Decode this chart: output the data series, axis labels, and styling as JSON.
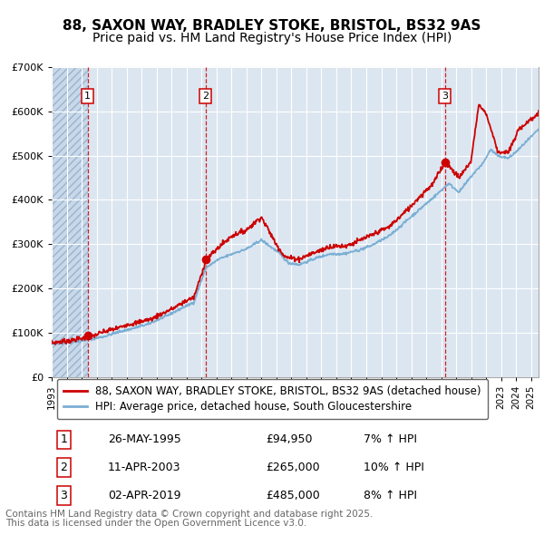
{
  "title_line1": "88, SAXON WAY, BRADLEY STOKE, BRISTOL, BS32 9AS",
  "title_line2": "Price paid vs. HM Land Registry's House Price Index (HPI)",
  "legend_label_red": "88, SAXON WAY, BRADLEY STOKE, BRISTOL, BS32 9AS (detached house)",
  "legend_label_blue": "HPI: Average price, detached house, South Gloucestershire",
  "transactions": [
    {
      "num": 1,
      "date": "26-MAY-1995",
      "price": 94950,
      "pct": "7%",
      "dir": "↑"
    },
    {
      "num": 2,
      "date": "11-APR-2003",
      "price": 265000,
      "pct": "10%",
      "dir": "↑"
    },
    {
      "num": 3,
      "date": "02-APR-2019",
      "price": 485000,
      "pct": "8%",
      "dir": "↑"
    }
  ],
  "transaction_dates_decimal": [
    1995.396,
    2003.274,
    2019.249
  ],
  "transaction_prices": [
    94950,
    265000,
    485000
  ],
  "footnote_line1": "Contains HM Land Registry data © Crown copyright and database right 2025.",
  "footnote_line2": "This data is licensed under the Open Government Licence v3.0.",
  "ylim": [
    0,
    700000
  ],
  "yticks": [
    0,
    100000,
    200000,
    300000,
    400000,
    500000,
    600000,
    700000
  ],
  "ytick_labels": [
    "£0",
    "£100K",
    "£200K",
    "£300K",
    "£400K",
    "£500K",
    "£600K",
    "£700K"
  ],
  "xmin": 1993.0,
  "xmax": 2025.5,
  "plot_bg_color": "#dce6f1",
  "hatch_facecolor": "#c8d8ea",
  "red_color": "#cc0000",
  "blue_color": "#7bafd4",
  "grid_color": "#ffffff",
  "title_fontsize": 11,
  "axis_fontsize": 8,
  "legend_fontsize": 8.5,
  "table_fontsize": 9,
  "footnote_fontsize": 7.5,
  "label_num_fontsize": 8,
  "hpi_anchors_t": [
    1993.0,
    1994.5,
    1995.4,
    1996.5,
    1997.5,
    1998.5,
    1999.5,
    2001.0,
    2002.5,
    2003.3,
    2004.2,
    2005.0,
    2006.0,
    2007.0,
    2008.2,
    2008.8,
    2009.5,
    2010.5,
    2011.5,
    2012.5,
    2013.5,
    2014.5,
    2015.5,
    2016.5,
    2017.5,
    2018.5,
    2019.5,
    2020.2,
    2021.0,
    2021.8,
    2022.3,
    2022.8,
    2023.5,
    2024.2,
    2025.5
  ],
  "hpi_anchors_v": [
    79000,
    84000,
    88000,
    96000,
    105000,
    113000,
    123000,
    145000,
    170000,
    248000,
    268000,
    278000,
    290000,
    310000,
    280000,
    258000,
    255000,
    268000,
    278000,
    278000,
    285000,
    298000,
    315000,
    345000,
    375000,
    405000,
    435000,
    415000,
    450000,
    480000,
    510000,
    495000,
    490000,
    510000,
    555000
  ],
  "pp_anchors_t": [
    1993.0,
    1994.5,
    1995.4,
    1996.5,
    1997.5,
    1998.5,
    1999.5,
    2001.0,
    2002.5,
    2003.3,
    2004.2,
    2005.0,
    2006.0,
    2007.0,
    2008.0,
    2008.6,
    2009.5,
    2010.5,
    2011.5,
    2012.5,
    2013.5,
    2014.5,
    2015.5,
    2016.5,
    2017.5,
    2018.5,
    2019.25,
    2020.2,
    2021.0,
    2021.5,
    2022.0,
    2022.8,
    2023.5,
    2024.2,
    2025.5
  ],
  "pp_anchors_v": [
    81000,
    86000,
    90000,
    100000,
    110000,
    120000,
    130000,
    153000,
    180000,
    265000,
    295000,
    318000,
    330000,
    360000,
    298000,
    270000,
    265000,
    282000,
    295000,
    295000,
    305000,
    320000,
    338000,
    370000,
    405000,
    438000,
    485000,
    450000,
    490000,
    615000,
    595000,
    510000,
    510000,
    565000,
    600000
  ]
}
